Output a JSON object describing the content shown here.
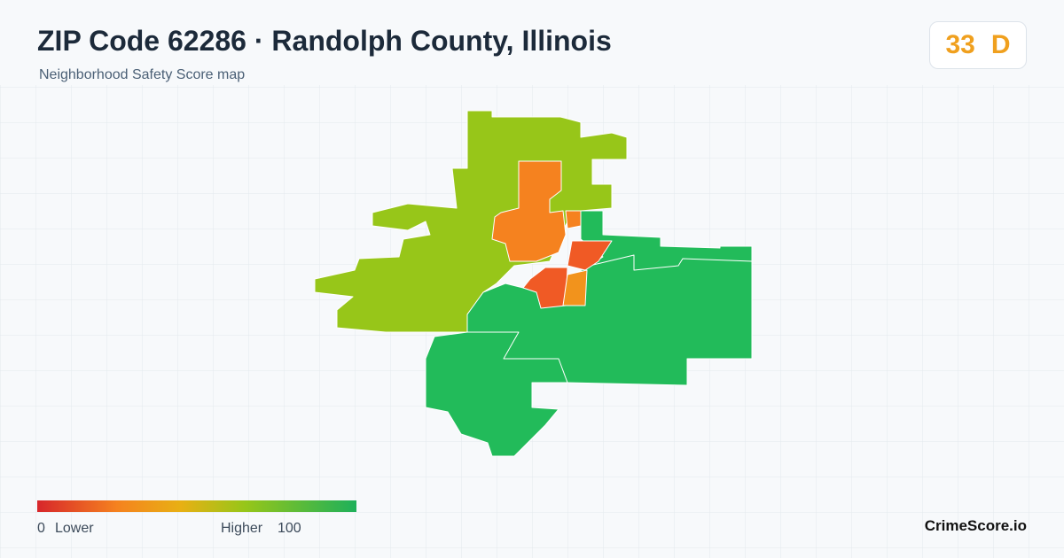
{
  "header": {
    "title": "ZIP Code 62286 · Randolph County, Illinois",
    "subtitle": "Neighborhood Safety Score map"
  },
  "score": {
    "value": 33,
    "grade": "D"
  },
  "legend": {
    "min": 0,
    "min_label": "Lower",
    "max_label": "Higher",
    "max": 100
  },
  "brand": "CrimeScore.io"
}
